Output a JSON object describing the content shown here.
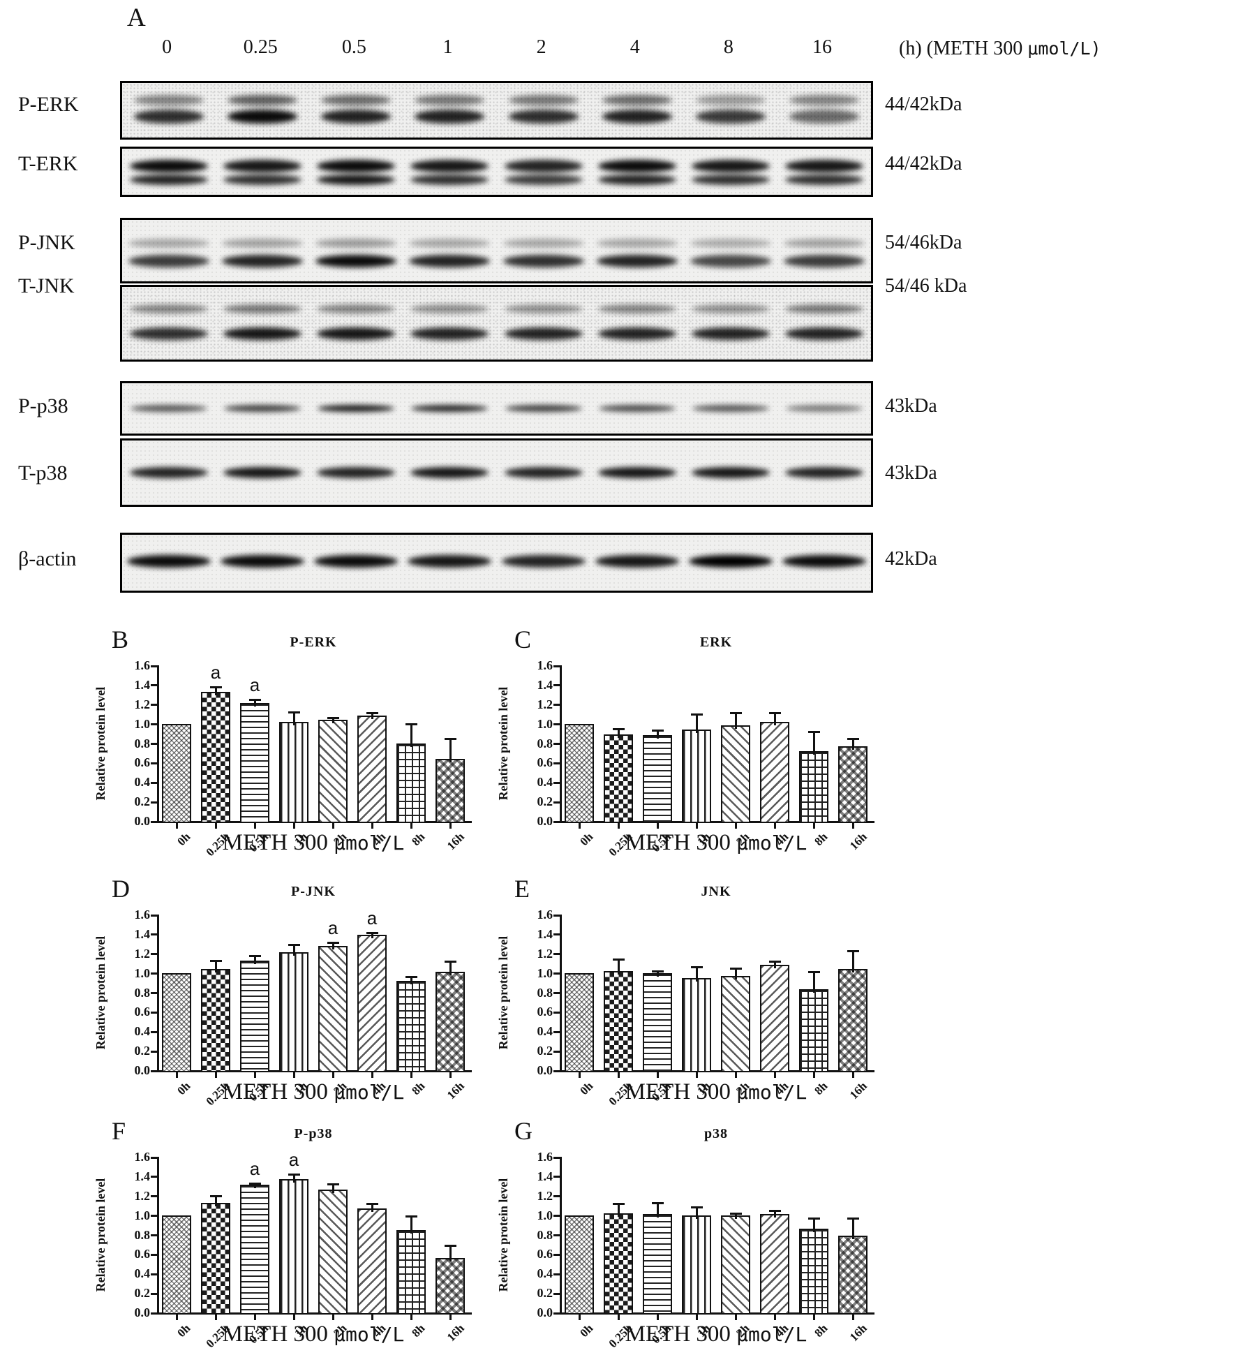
{
  "panel_a": {
    "label": "A",
    "lane_times": [
      "0",
      "0.25",
      "0.5",
      "1",
      "2",
      "4",
      "8",
      "16"
    ],
    "header_unit": "(h)  (METH 300 μmol/L)",
    "blots": [
      {
        "name": "P-ERK",
        "kda": "44/42kDa"
      },
      {
        "name": "T-ERK",
        "kda": "44/42kDa"
      },
      {
        "name": "P-JNK",
        "kda": "54/46kDa"
      },
      {
        "name": "T-JNK",
        "kda": "54/46 kDa"
      },
      {
        "name": "P-p38",
        "kda": "43kDa"
      },
      {
        "name": "T-p38",
        "kda": "43kDa"
      },
      {
        "name": "β-actin",
        "kda": "42kDa"
      }
    ]
  },
  "sig_label": "a",
  "chart_data": [
    {
      "panel": "B",
      "type": "bar",
      "title": "P-ERK",
      "categories": [
        "0h",
        "0.25h",
        "0.5h",
        "1h",
        "2h",
        "4h",
        "8h",
        "16h"
      ],
      "values": [
        1.0,
        1.33,
        1.21,
        1.02,
        1.04,
        1.08,
        0.8,
        0.64
      ],
      "errors": [
        0,
        0.05,
        0.04,
        0.1,
        0.02,
        0.03,
        0.2,
        0.21
      ],
      "significance": [
        "0.25h",
        "0.5h"
      ],
      "ylabel": "Relative protein level",
      "xlabel": "METH 300 μmol/L",
      "ylim": [
        0,
        1.6
      ],
      "ytick_step": 0.2,
      "grid": false,
      "legend": "none"
    },
    {
      "panel": "C",
      "type": "bar",
      "title": "ERK",
      "categories": [
        "0h",
        "0.25h",
        "0.5h",
        "1h",
        "2h",
        "4h",
        "8h",
        "16h"
      ],
      "values": [
        1.0,
        0.89,
        0.88,
        0.94,
        0.98,
        1.02,
        0.72,
        0.77
      ],
      "errors": [
        0,
        0.06,
        0.05,
        0.16,
        0.13,
        0.09,
        0.2,
        0.08
      ],
      "significance": [],
      "ylabel": "Relative protein level",
      "xlabel": "METH 300 μmol/L",
      "ylim": [
        0,
        1.6
      ],
      "ytick_step": 0.2,
      "grid": false,
      "legend": "none"
    },
    {
      "panel": "D",
      "type": "bar",
      "title": "P-JNK",
      "categories": [
        "0h",
        "0.25h",
        "0.5h",
        "1h",
        "2h",
        "4h",
        "8h",
        "16h"
      ],
      "values": [
        1.0,
        1.04,
        1.13,
        1.21,
        1.28,
        1.39,
        0.92,
        1.01
      ],
      "errors": [
        0,
        0.09,
        0.05,
        0.08,
        0.03,
        0.02,
        0.04,
        0.11
      ],
      "significance": [
        "2h",
        "4h"
      ],
      "ylabel": "Relative protein level",
      "xlabel": "METH 300 μmol/L",
      "ylim": [
        0,
        1.6
      ],
      "ytick_step": 0.2,
      "grid": false,
      "legend": "none"
    },
    {
      "panel": "E",
      "type": "bar",
      "title": "JNK",
      "categories": [
        "0h",
        "0.25h",
        "0.5h",
        "1h",
        "2h",
        "4h",
        "8h",
        "16h"
      ],
      "values": [
        1.0,
        1.02,
        1.0,
        0.95,
        0.97,
        1.08,
        0.83,
        1.04
      ],
      "errors": [
        0,
        0.12,
        0.02,
        0.11,
        0.08,
        0.04,
        0.18,
        0.19
      ],
      "significance": [],
      "ylabel": "Relative protein level",
      "xlabel": "METH 300 μmol/L",
      "ylim": [
        0,
        1.6
      ],
      "ytick_step": 0.2,
      "grid": false,
      "legend": "none"
    },
    {
      "panel": "F",
      "type": "bar",
      "title": "P-p38",
      "categories": [
        "0h",
        "0.25h",
        "0.5h",
        "1h",
        "2h",
        "4h",
        "8h",
        "16h"
      ],
      "values": [
        1.0,
        1.13,
        1.31,
        1.37,
        1.26,
        1.07,
        0.85,
        0.56
      ],
      "errors": [
        0,
        0.07,
        0.02,
        0.05,
        0.06,
        0.05,
        0.14,
        0.13
      ],
      "significance": [
        "0.5h",
        "1h"
      ],
      "ylabel": "Relative protein level",
      "xlabel": "METH 300 μmol/L",
      "ylim": [
        0,
        1.6
      ],
      "ytick_step": 0.2,
      "grid": false,
      "legend": "none"
    },
    {
      "panel": "G",
      "type": "bar",
      "title": "p38",
      "categories": [
        "0h",
        "0.25h",
        "0.5h",
        "1h",
        "2h",
        "4h",
        "8h",
        "16h"
      ],
      "values": [
        1.0,
        1.02,
        1.01,
        1.0,
        1.0,
        1.01,
        0.86,
        0.79
      ],
      "errors": [
        0,
        0.1,
        0.12,
        0.08,
        0.02,
        0.04,
        0.11,
        0.18
      ],
      "significance": [],
      "ylabel": "Relative protein level",
      "xlabel": "METH 300 μmol/L",
      "ylim": [
        0,
        1.6
      ],
      "ytick_step": 0.2,
      "grid": false,
      "legend": "none"
    }
  ]
}
